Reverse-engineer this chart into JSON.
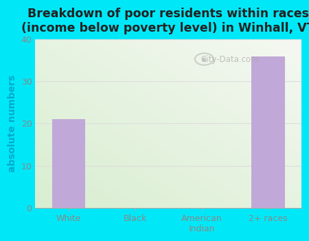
{
  "title": "Breakdown of poor residents within races\n(income below poverty level) in Winhall, VT",
  "categories": [
    "White",
    "Black",
    "American\nIndian",
    "2+ races"
  ],
  "values": [
    21,
    0,
    0,
    36
  ],
  "bar_color": "#c0a8d8",
  "ylabel": "absolute numbers",
  "ylim": [
    0,
    40
  ],
  "yticks": [
    0,
    10,
    20,
    30,
    40
  ],
  "background_outer": "#00e8f8",
  "title_fontsize": 12.5,
  "title_color": "#222222",
  "ylabel_color": "#00aacc",
  "tick_color": "#888888",
  "watermark": "City-Data.com",
  "grid_color": "#dddddd",
  "plot_bg_green": "#d8eed0",
  "plot_bg_white": "#f5f8f2"
}
